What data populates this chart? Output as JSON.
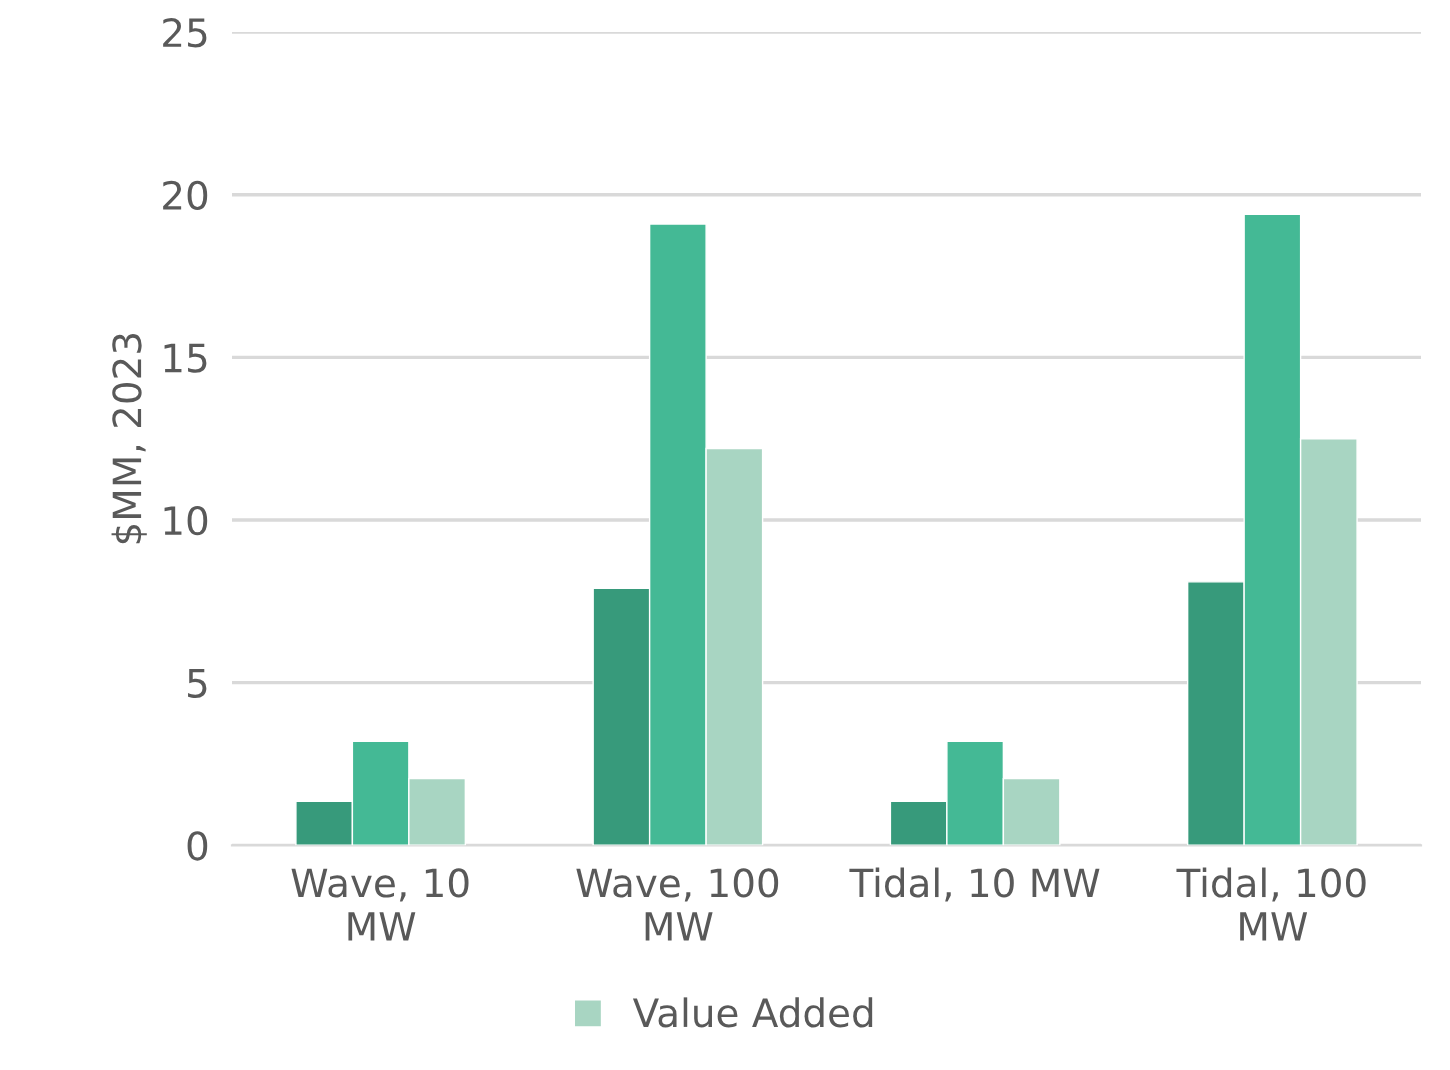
{
  "chart_data": {
    "type": "bar",
    "ylabel": "$MM, 2023",
    "categories": [
      "Wave, 10\nMW",
      "Wave, 100\nMW",
      "Tidal, 10 MW",
      "Tidal, 100\nMW"
    ],
    "series": [
      {
        "color": "#379a7b",
        "values": [
          1.35,
          7.9,
          1.35,
          8.1
        ]
      },
      {
        "color": "#44b995",
        "values": [
          3.2,
          19.1,
          3.2,
          19.4
        ]
      },
      {
        "name": "Value Added",
        "color": "#a8d5c2",
        "values": [
          2.05,
          12.2,
          2.05,
          12.5
        ]
      }
    ],
    "ylim": [
      0,
      25
    ],
    "yticks": [
      0,
      5,
      10,
      15,
      20,
      25
    ],
    "grid": "y",
    "legend": "bottom"
  }
}
